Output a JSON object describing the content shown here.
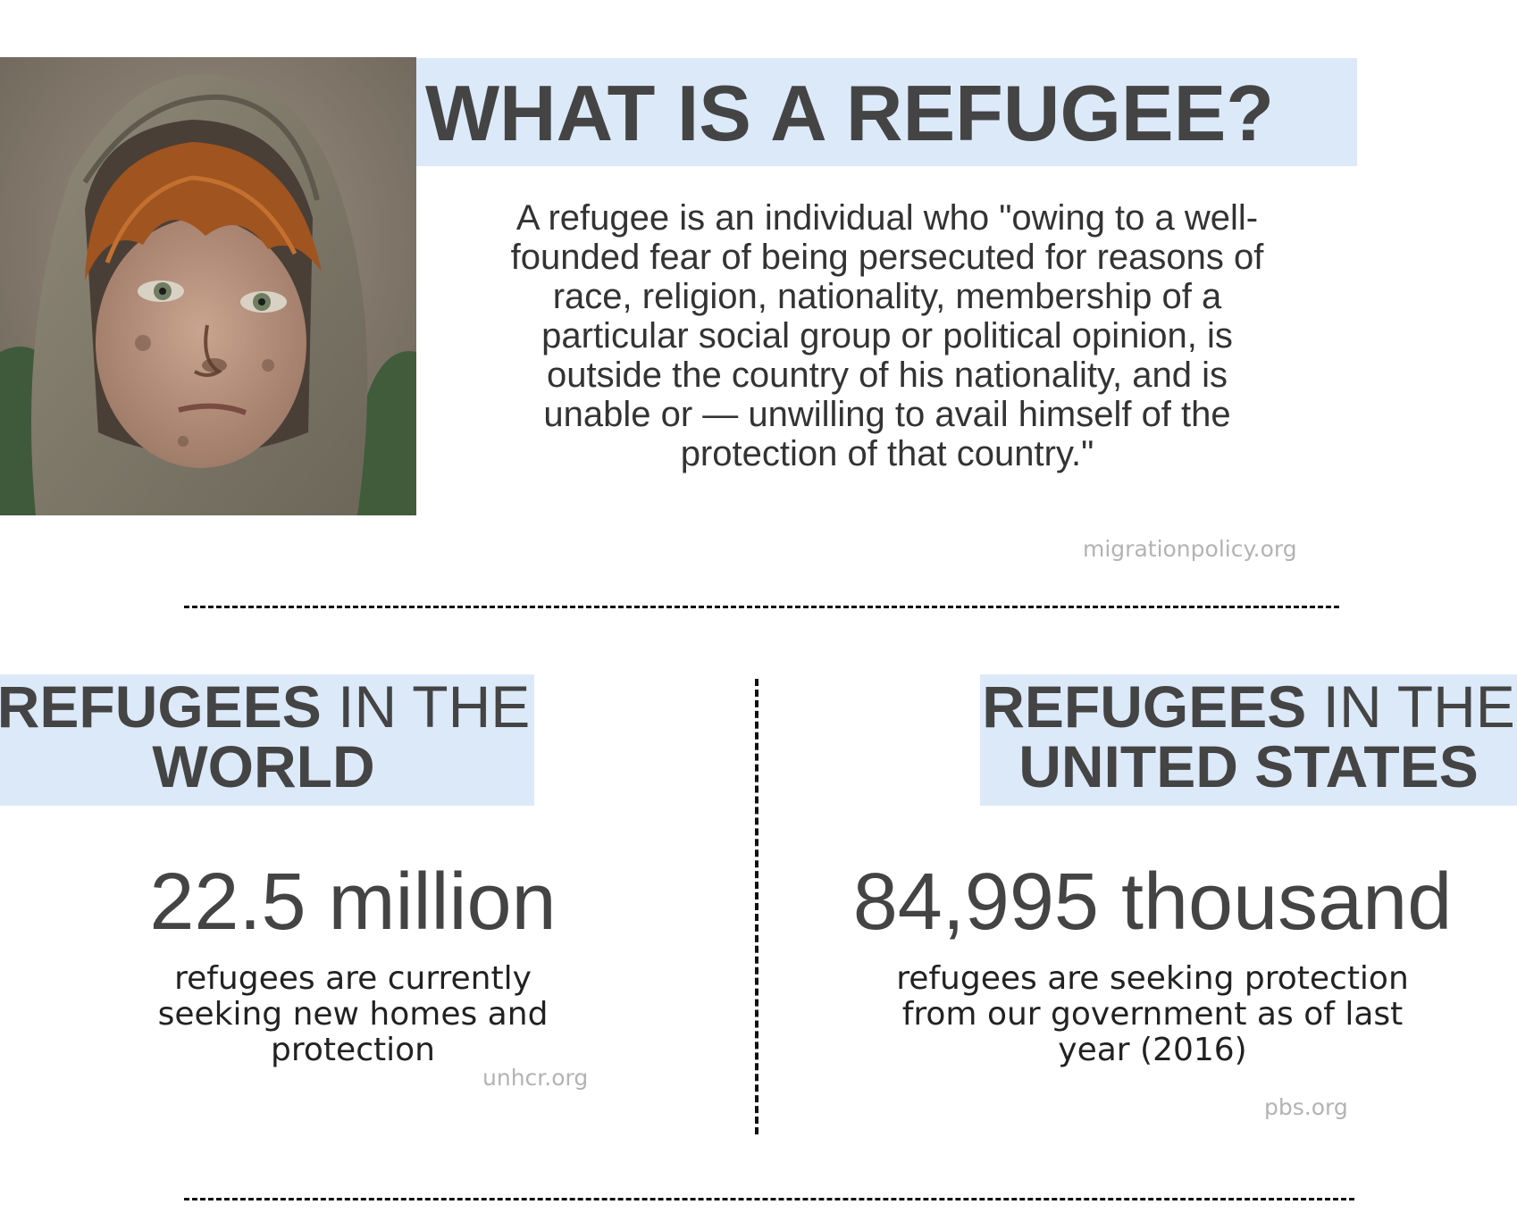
{
  "title": "WHAT IS A REFUGEE?",
  "definition": "A refugee is an individual who \"owing to a well-founded fear of being persecuted for reasons of race, religion, nationality, membership of a particular social group or political opinion, is outside the country of his nationality, and is unable or — unwilling to avail himself of the protection of that country.\"",
  "definition_source": "migrationpolicy.org",
  "world": {
    "heading_bold_1": "REFUGEES",
    "heading_normal": " IN THE",
    "heading_bold_2": "WORLD",
    "stat": "22.5 million",
    "caption": "refugees are currently seeking new homes and protection",
    "source": "unhcr.org"
  },
  "united_states": {
    "heading_bold_1": "REFUGEES",
    "heading_normal": " IN THE",
    "heading_bold_2": "UNITED STATES",
    "stat": "84,995 thousand",
    "caption": "refugees are seeking protection from our government as of last year (2016)",
    "source": "pbs.org"
  },
  "colors": {
    "heading_highlight": "#dce9f9",
    "heading_text": "#444444",
    "source_text": "#b3b3b3",
    "divider": "#111111"
  }
}
